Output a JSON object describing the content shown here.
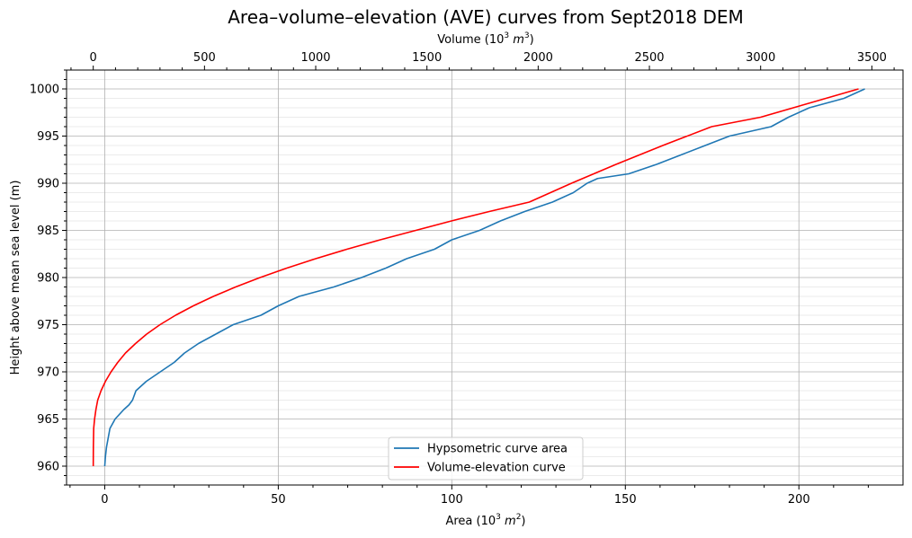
{
  "chart_data": {
    "type": "line",
    "title": "Area–volume–elevation (AVE) curves from Sept2018 DEM",
    "xlabel": "Area (10",
    "xlabel_sup": "3",
    "xlabel_unit": " m",
    "xlabel_unit_sup": "2",
    "xlabel_close": ")",
    "x2label": "Volume (10",
    "x2label_sup": "3",
    "x2label_unit": " m",
    "x2label_unit_sup": "3",
    "x2label_close": ")",
    "ylabel": "Height above mean sea level (m)",
    "xlim": [
      -11,
      230
    ],
    "x2lim": [
      -120,
      3640
    ],
    "ylim": [
      958,
      1002
    ],
    "xticks": [
      0,
      50,
      100,
      150,
      200
    ],
    "x2ticks": [
      0,
      500,
      1000,
      1500,
      2000,
      2500,
      3000,
      3500
    ],
    "yticks": [
      960,
      965,
      970,
      975,
      980,
      985,
      990,
      995,
      1000
    ],
    "grid": true,
    "legend_position": "lower center",
    "series": [
      {
        "name": "Hypsometric curve area",
        "color": "#1f77b4",
        "axis": "area",
        "x": [
          0,
          0.2,
          0.5,
          1,
          1.5,
          3,
          5.5,
          7,
          8,
          9,
          12,
          16,
          20,
          23,
          27,
          32,
          37,
          45,
          50,
          56,
          66,
          74,
          81,
          87,
          95,
          100,
          108,
          114,
          121,
          129,
          135,
          139,
          142,
          151,
          159,
          166,
          173,
          180,
          192,
          197,
          203,
          213,
          219
        ],
        "y": [
          960,
          961,
          962,
          963,
          964,
          965,
          966,
          966.5,
          967,
          968,
          969,
          970,
          971,
          972,
          973,
          974,
          975,
          976,
          977,
          978,
          979,
          980,
          981,
          982,
          983,
          984,
          985,
          986,
          987,
          988,
          989,
          990,
          990.5,
          991,
          992,
          993,
          994,
          995,
          996,
          997,
          998,
          999,
          1000
        ]
      },
      {
        "name": "Volume-elevation curve",
        "color": "#ff0000",
        "axis": "volume",
        "x": [
          0,
          0.5,
          2,
          6,
          12,
          20,
          35,
          55,
          80,
          110,
          145,
          190,
          240,
          300,
          370,
          450,
          540,
          640,
          750,
          870,
          1000,
          1140,
          1290,
          1450,
          1610,
          1780,
          1960,
          2150,
          2350,
          2560,
          2780,
          3000,
          3220,
          3440
        ],
        "y": [
          960,
          962,
          964,
          965,
          966,
          967,
          968,
          969,
          970,
          971,
          972,
          973,
          974,
          975,
          976,
          977,
          978,
          979,
          980,
          981,
          982,
          983,
          984,
          985,
          986,
          987,
          988,
          990,
          992,
          994,
          996,
          997,
          998.5,
          1000
        ]
      }
    ]
  }
}
